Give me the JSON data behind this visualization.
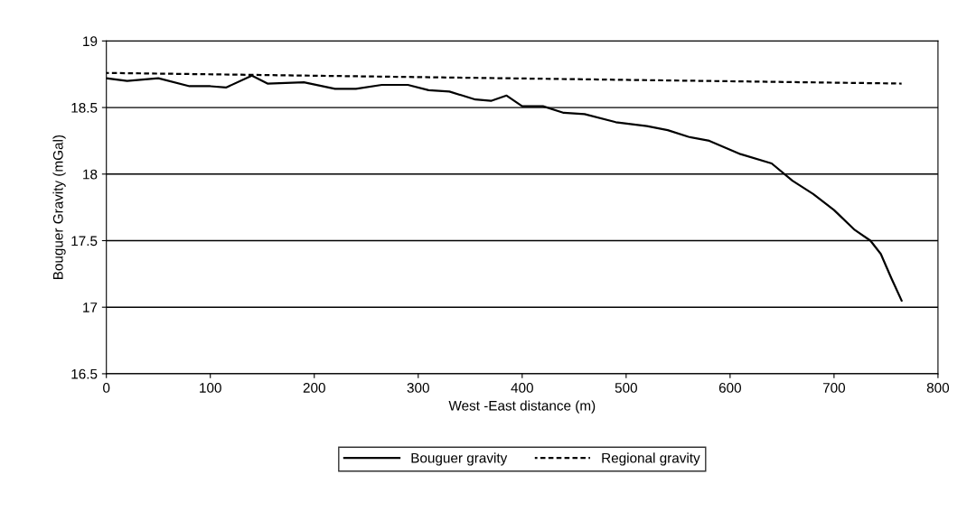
{
  "chart_data": {
    "type": "line",
    "xlabel": "West -East distance (m)",
    "ylabel": "Bouguer Gravity (mGal)",
    "xlim": [
      0,
      800
    ],
    "xticks": [
      0,
      100,
      200,
      300,
      400,
      500,
      600,
      700,
      800
    ],
    "ylim": [
      16.5,
      19
    ],
    "yticks": [
      16.5,
      17,
      17.5,
      18,
      18.5,
      19
    ],
    "grid": "y",
    "legend": "bottom",
    "marker": "none",
    "series": [
      {
        "name": "Bouguer gravity",
        "color": "#000000",
        "line_style": "solid",
        "x": [
          0,
          20,
          50,
          80,
          100,
          115,
          140,
          155,
          190,
          220,
          240,
          265,
          290,
          310,
          330,
          355,
          370,
          385,
          400,
          420,
          440,
          460,
          490,
          520,
          540,
          560,
          580,
          610,
          640,
          660,
          680,
          700,
          720,
          735,
          745,
          755,
          765
        ],
        "values": [
          18.72,
          18.7,
          18.72,
          18.66,
          18.66,
          18.65,
          18.74,
          18.68,
          18.69,
          18.64,
          18.64,
          18.67,
          18.67,
          18.63,
          18.62,
          18.56,
          18.55,
          18.59,
          18.51,
          18.51,
          18.46,
          18.45,
          18.39,
          18.36,
          18.33,
          18.28,
          18.25,
          18.15,
          18.08,
          17.95,
          17.85,
          17.73,
          17.58,
          17.5,
          17.4,
          17.22,
          17.05
        ]
      },
      {
        "name": "Regional gravity",
        "color": "#000000",
        "line_style": "dashed",
        "x": [
          0,
          765
        ],
        "values": [
          18.76,
          18.68
        ]
      }
    ]
  }
}
